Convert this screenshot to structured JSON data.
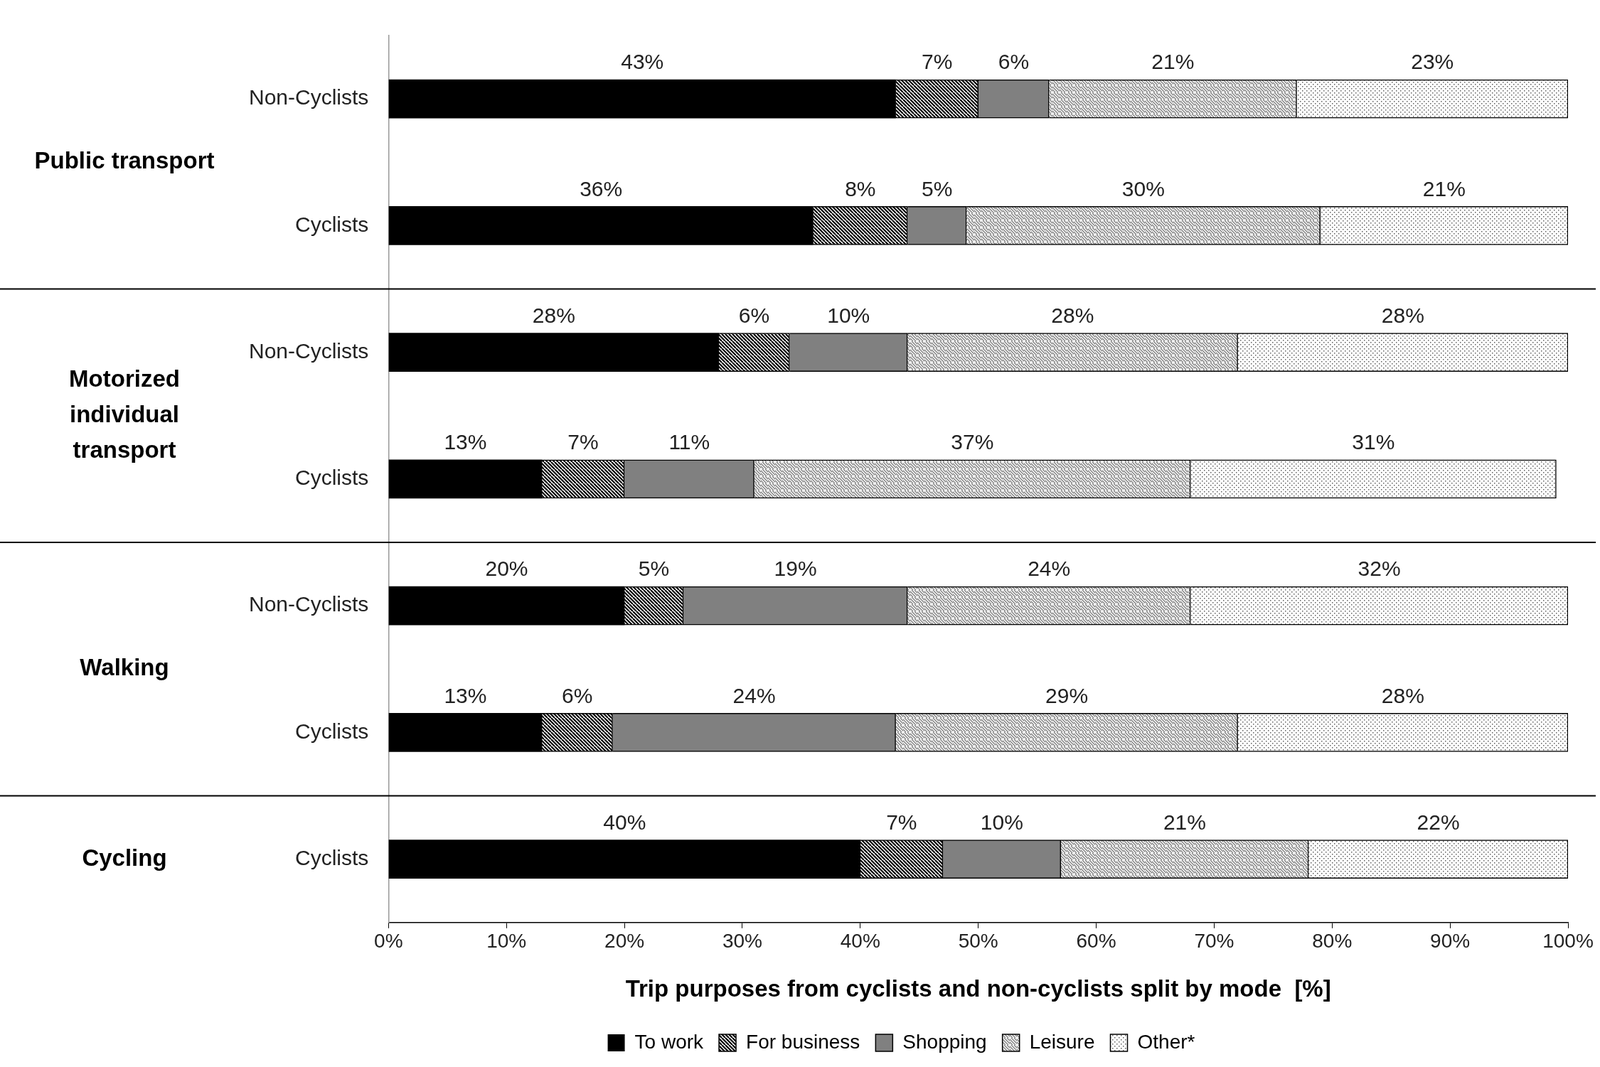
{
  "chart_data": {
    "type": "bar",
    "orientation": "horizontal",
    "stacked": true,
    "data_labels": true,
    "grid": false,
    "legend": "bottom",
    "x_label": "Trip purposes from cyclists and non-cyclists split by mode  [%]",
    "groups": [
      {
        "label": [
          "Public transport"
        ],
        "categories": [
          "Non-Cyclists",
          "Cyclists"
        ]
      },
      {
        "label": [
          "Motorized",
          "individual",
          "transport"
        ],
        "categories": [
          "Non-Cyclists",
          "Cyclists"
        ]
      },
      {
        "label": [
          "Walking"
        ],
        "categories": [
          "Non-Cyclists",
          "Cyclists"
        ]
      },
      {
        "label": [
          "Cycling"
        ],
        "categories": [
          "Cyclists"
        ]
      }
    ],
    "xlim": [
      0,
      100
    ],
    "xticks": [
      {
        "value": 0,
        "label": "0%"
      },
      {
        "value": 10,
        "label": "10%"
      },
      {
        "value": 20,
        "label": "20%"
      },
      {
        "value": 30,
        "label": "30%"
      },
      {
        "value": 40,
        "label": "40%"
      },
      {
        "value": 50,
        "label": "50%"
      },
      {
        "value": 60,
        "label": "60%"
      },
      {
        "value": 70,
        "label": "70%"
      },
      {
        "value": 80,
        "label": "80%"
      },
      {
        "value": 90,
        "label": "90%"
      },
      {
        "value": 100,
        "label": "100%"
      }
    ],
    "series": [
      {
        "name": "To work",
        "color": "#000000",
        "values": [
          43,
          36,
          28,
          13,
          20,
          13,
          40
        ],
        "value_labels": [
          "43%",
          "36%",
          "28%",
          "13%",
          "20%",
          "13%",
          "40%"
        ]
      },
      {
        "name": "For business",
        "color": "#000000",
        "values": [
          7,
          8,
          6,
          7,
          5,
          6,
          7
        ],
        "value_labels": [
          "7%",
          "8%",
          "6%",
          "7%",
          "5%",
          "6%",
          "7%"
        ]
      },
      {
        "name": "Shopping",
        "color": "#808080",
        "values": [
          6,
          5,
          10,
          11,
          19,
          24,
          10
        ],
        "value_labels": [
          "6%",
          "5%",
          "10%",
          "11%",
          "19%",
          "24%",
          "10%"
        ]
      },
      {
        "name": "Leisure",
        "color": "#808080",
        "values": [
          21,
          30,
          28,
          37,
          24,
          29,
          21
        ],
        "value_labels": [
          "21%",
          "30%",
          "28%",
          "37%",
          "24%",
          "29%",
          "21%"
        ]
      },
      {
        "name": "Other*",
        "color": "#606060",
        "values": [
          23,
          21,
          28,
          31,
          32,
          28,
          22
        ],
        "value_labels": [
          "23%",
          "21%",
          "28%",
          "31%",
          "32%",
          "28%",
          "22%"
        ]
      }
    ]
  }
}
